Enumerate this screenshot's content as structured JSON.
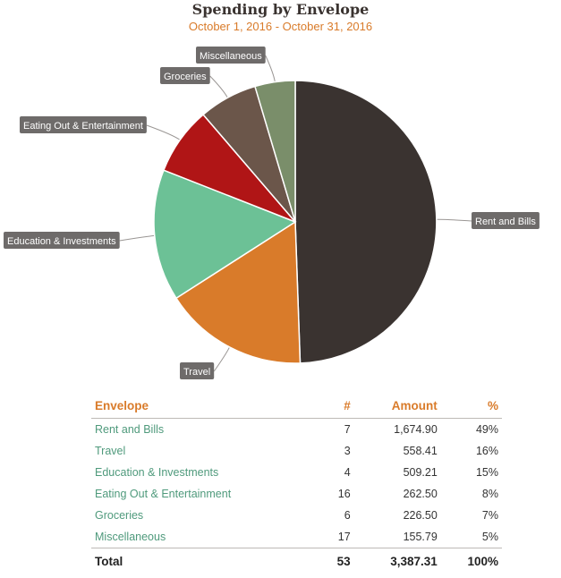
{
  "chart_data": {
    "type": "pie",
    "title": "Spending by Envelope",
    "subtitle": "October 1, 2016 - October 31, 2016",
    "slices": [
      {
        "label": "Rent and Bills",
        "value": 1674.9,
        "color": "#3a3330"
      },
      {
        "label": "Travel",
        "value": 558.41,
        "color": "#d97b2a"
      },
      {
        "label": "Education & Investments",
        "value": 509.21,
        "color": "#6cc196"
      },
      {
        "label": "Eating Out & Entertainment",
        "value": 262.5,
        "color": "#b01516"
      },
      {
        "label": "Groceries",
        "value": 226.5,
        "color": "#6b564a"
      },
      {
        "label": "Miscellaneous",
        "value": 155.79,
        "color": "#7a8e6a"
      }
    ]
  },
  "table": {
    "headers": {
      "envelope": "Envelope",
      "count": "#",
      "amount": "Amount",
      "percent": "%"
    },
    "rows": [
      {
        "name": "Rent and Bills",
        "count": "7",
        "amount": "1,674.90",
        "percent": "49%"
      },
      {
        "name": "Travel",
        "count": "3",
        "amount": "558.41",
        "percent": "16%"
      },
      {
        "name": "Education & Investments",
        "count": "4",
        "amount": "509.21",
        "percent": "15%"
      },
      {
        "name": "Eating Out & Entertainment",
        "count": "16",
        "amount": "262.50",
        "percent": "8%"
      },
      {
        "name": "Groceries",
        "count": "6",
        "amount": "226.50",
        "percent": "7%"
      },
      {
        "name": "Miscellaneous",
        "count": "17",
        "amount": "155.79",
        "percent": "5%"
      }
    ],
    "total": {
      "name": "Total",
      "count": "53",
      "amount": "3,387.31",
      "percent": "100%"
    }
  }
}
